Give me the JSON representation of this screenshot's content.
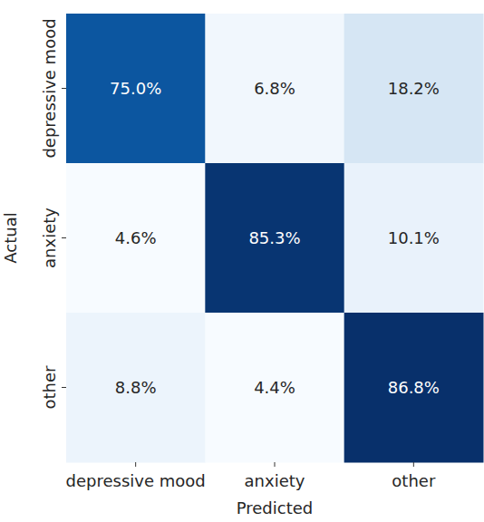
{
  "chart_data": {
    "type": "heatmap",
    "x_label": "Predicted",
    "y_label": "Actual",
    "x_categories": [
      "depressive mood",
      "anxiety",
      "other"
    ],
    "y_categories": [
      "depressive mood",
      "anxiety",
      "other"
    ],
    "values": [
      [
        75.0,
        6.8,
        18.2
      ],
      [
        4.6,
        85.3,
        10.1
      ],
      [
        8.8,
        4.4,
        86.8
      ]
    ],
    "value_labels": [
      [
        "75.0%",
        "6.8%",
        "18.2%"
      ],
      [
        "4.6%",
        "85.3%",
        "10.1%"
      ],
      [
        "8.8%",
        "4.4%",
        "86.8%"
      ]
    ],
    "color": "Blues",
    "data_labels": true
  }
}
